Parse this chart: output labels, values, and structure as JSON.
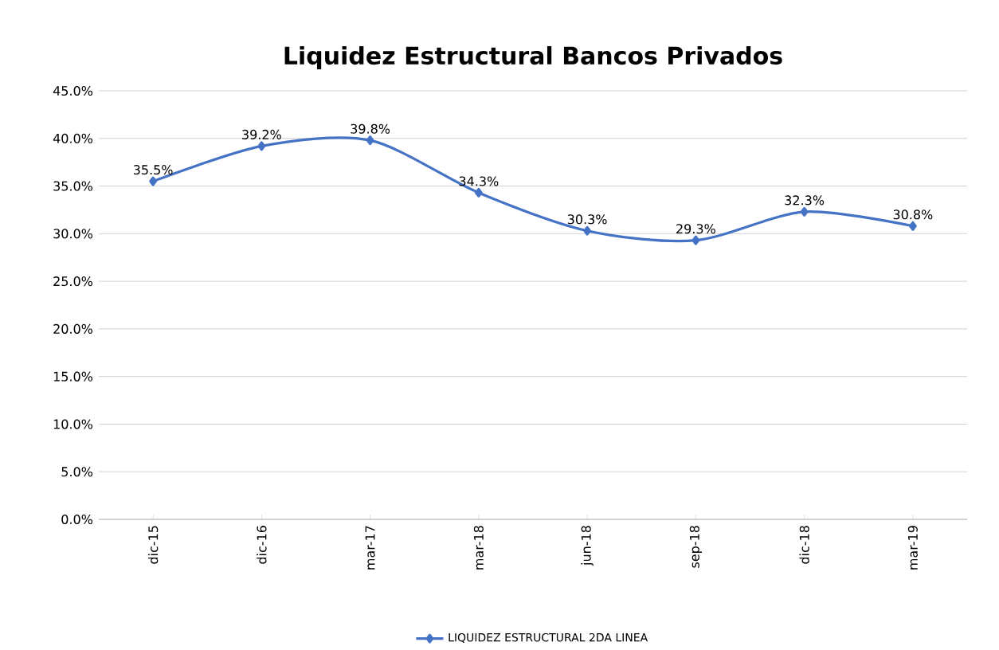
{
  "chart_data": {
    "type": "line",
    "title": "Liquidez Estructural Bancos Privados",
    "categories": [
      "dic-15",
      "dic-16",
      "mar-17",
      "mar-18",
      "jun-18",
      "sep-18",
      "dic-18",
      "mar-19"
    ],
    "series": [
      {
        "name": "LIQUIDEZ ESTRUCTURAL 2DA LINEA",
        "color": "#4472c4",
        "values": [
          35.5,
          39.2,
          39.8,
          34.3,
          30.3,
          29.3,
          32.3,
          30.8
        ],
        "value_labels": [
          "35.5%",
          "39.2%",
          "39.8%",
          "34.3%",
          "30.3%",
          "29.3%",
          "32.3%",
          "30.8%"
        ]
      }
    ],
    "ylim": [
      0,
      45
    ],
    "yticks": [
      {
        "value": 0,
        "label": "0.0%"
      },
      {
        "value": 5,
        "label": "5.0%"
      },
      {
        "value": 10,
        "label": "10.0%"
      },
      {
        "value": 15,
        "label": "15.0%"
      },
      {
        "value": 20,
        "label": "20.0%"
      },
      {
        "value": 25,
        "label": "25.0%"
      },
      {
        "value": 30,
        "label": "30.0%"
      },
      {
        "value": 35,
        "label": "35.0%"
      },
      {
        "value": 40,
        "label": "40.0%"
      },
      {
        "value": 45,
        "label": "45.0%"
      }
    ],
    "grid": "y",
    "legend": "bottom",
    "marker": "diamond",
    "line_style": "solid"
  }
}
